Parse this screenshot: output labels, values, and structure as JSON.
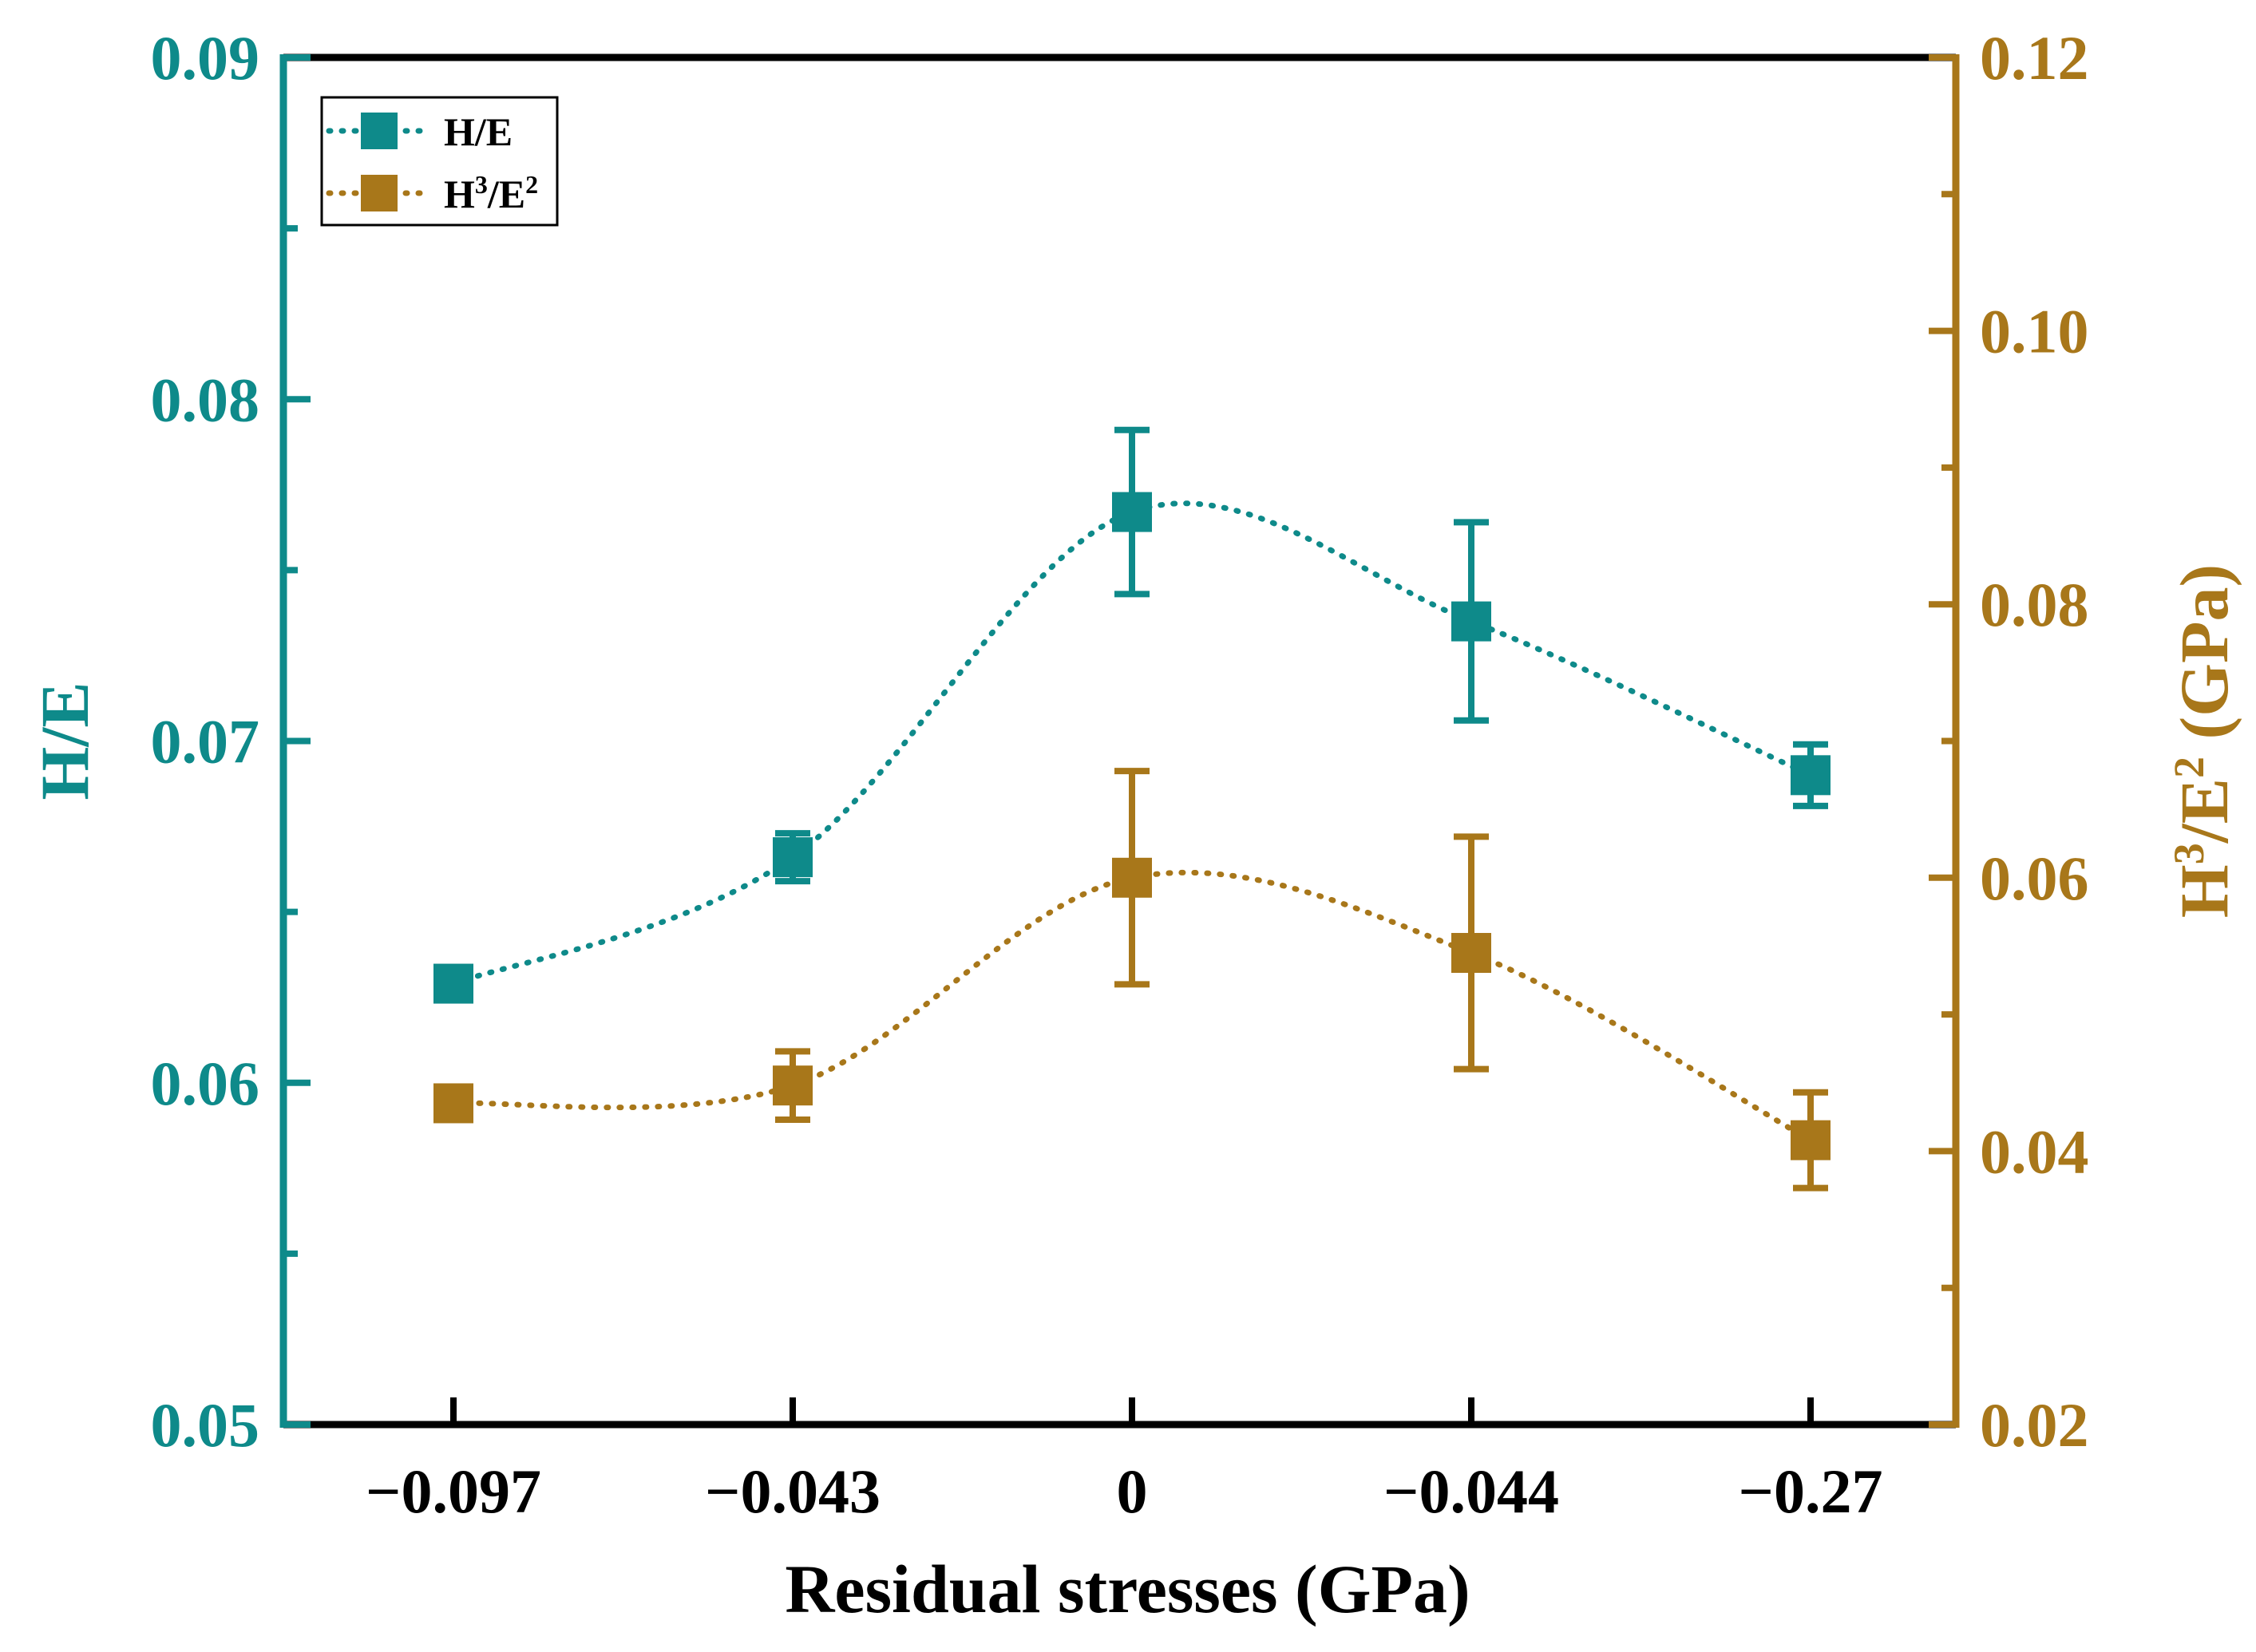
{
  "chart_data": {
    "type": "line",
    "categories": [
      "−0.097",
      "−0.043",
      "0",
      "−0.044",
      "−0.27"
    ],
    "xlabel": "Residual stresses (GPa)",
    "ylabel_left": "H/E",
    "ylabel_right_parts": {
      "base1": "H",
      "sup1": "3",
      "base2": "/E",
      "sup2": "2",
      "unit": " (GPa)"
    },
    "ylim_left": [
      0.05,
      0.09
    ],
    "ylim_right": [
      0.02,
      0.12
    ],
    "yticks_left": [
      "0.05",
      "0.06",
      "0.07",
      "0.08",
      "0.09"
    ],
    "yticks_right": [
      "0.02",
      "0.04",
      "0.06",
      "0.08",
      "0.10",
      "0.12"
    ],
    "legend_position": "top-left",
    "series": [
      {
        "name": "H/E",
        "axis": "left",
        "color": "#0e8a8a",
        "values": [
          0.0629,
          0.0666,
          0.0767,
          0.0735,
          0.069
        ],
        "errors": [
          0.0004,
          0.0007,
          0.0024,
          0.0029,
          0.0009
        ]
      },
      {
        "name": "H3/E2",
        "legend_parts": {
          "base1": "H",
          "sup1": "3",
          "base2": "/E",
          "sup2": "2"
        },
        "axis": "right",
        "color": "#a8771a",
        "values": [
          0.0435,
          0.0448,
          0.06,
          0.0545,
          0.0408
        ],
        "errors": [
          0.001,
          0.0025,
          0.0078,
          0.0085,
          0.0035
        ]
      }
    ]
  }
}
